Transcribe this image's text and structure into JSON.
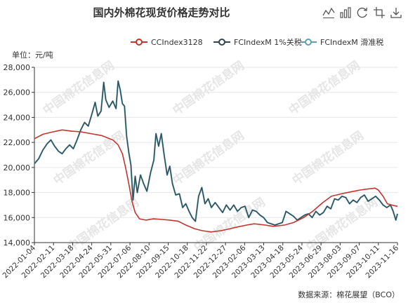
{
  "chart_data": {
    "type": "line",
    "title": "国内外棉花现货价格走势对比",
    "ylabel": "单位：元/吨",
    "source": "数据来源：棉花展望（BCO）",
    "watermark": "中国棉花信息网",
    "ylim": [
      14000,
      28000
    ],
    "yticks": [
      14000,
      16000,
      18000,
      20000,
      22000,
      24000,
      26000,
      28000
    ],
    "xticks": [
      "2022-01-04",
      "2022-02-11",
      "2022-03-18",
      "2022-04-24",
      "2022-05-31",
      "2022-07-06",
      "2022-08-10",
      "2022-09-15",
      "2022-10-18",
      "2022-11-22",
      "2022-12-27",
      "2023-02-06",
      "2023-03-13",
      "2023-04-18",
      "2023-05-24",
      "2023-06-29",
      "2023-08-03",
      "2023-09-07",
      "2023-10-11",
      "2023-11-16"
    ],
    "x_range": [
      "2022-01-04",
      "2023-11-16"
    ],
    "grid": true,
    "legend_position": "top-right",
    "series": [
      {
        "name": "CCIndex3128",
        "color": "#c23531",
        "points": [
          [
            "2022-01-04",
            22300
          ],
          [
            "2022-01-20",
            22650
          ],
          [
            "2022-02-08",
            22850
          ],
          [
            "2022-02-25",
            23000
          ],
          [
            "2022-03-15",
            22900
          ],
          [
            "2022-04-01",
            22850
          ],
          [
            "2022-04-20",
            22700
          ],
          [
            "2022-05-10",
            22550
          ],
          [
            "2022-05-31",
            22200
          ],
          [
            "2022-06-10",
            21800
          ],
          [
            "2022-06-18",
            21100
          ],
          [
            "2022-06-24",
            20000
          ],
          [
            "2022-07-01",
            18500
          ],
          [
            "2022-07-06",
            17300
          ],
          [
            "2022-07-12",
            16400
          ],
          [
            "2022-07-20",
            15900
          ],
          [
            "2022-08-01",
            15800
          ],
          [
            "2022-08-15",
            15900
          ],
          [
            "2022-09-01",
            15850
          ],
          [
            "2022-09-15",
            15800
          ],
          [
            "2022-10-01",
            15700
          ],
          [
            "2022-10-15",
            15400
          ],
          [
            "2022-11-01",
            15100
          ],
          [
            "2022-11-15",
            14950
          ],
          [
            "2022-12-01",
            14850
          ],
          [
            "2022-12-20",
            14950
          ],
          [
            "2023-01-05",
            15100
          ],
          [
            "2023-01-20",
            15250
          ],
          [
            "2023-02-06",
            15400
          ],
          [
            "2023-02-20",
            15500
          ],
          [
            "2023-03-13",
            15400
          ],
          [
            "2023-03-28",
            15300
          ],
          [
            "2023-04-18",
            15400
          ],
          [
            "2023-05-05",
            15600
          ],
          [
            "2023-05-24",
            16000
          ],
          [
            "2023-06-10",
            16500
          ],
          [
            "2023-06-29",
            17200
          ],
          [
            "2023-07-15",
            17700
          ],
          [
            "2023-08-03",
            17900
          ],
          [
            "2023-08-20",
            18050
          ],
          [
            "2023-09-07",
            18200
          ],
          [
            "2023-09-25",
            18300
          ],
          [
            "2023-10-05",
            18350
          ],
          [
            "2023-10-11",
            18200
          ],
          [
            "2023-10-20",
            17700
          ],
          [
            "2023-10-28",
            17100
          ],
          [
            "2023-11-05",
            17000
          ],
          [
            "2023-11-10",
            16950
          ],
          [
            "2023-11-16",
            16900
          ]
        ]
      },
      {
        "name": "FCIndexM 1%关税",
        "color": "#2f4554",
        "points": [
          [
            "2022-01-04",
            20300
          ],
          [
            "2022-01-12",
            20700
          ],
          [
            "2022-01-20",
            21400
          ],
          [
            "2022-01-28",
            21900
          ],
          [
            "2022-02-04",
            22200
          ],
          [
            "2022-02-11",
            21700
          ],
          [
            "2022-02-18",
            21300
          ],
          [
            "2022-02-25",
            21100
          ],
          [
            "2022-03-04",
            21500
          ],
          [
            "2022-03-11",
            21800
          ],
          [
            "2022-03-18",
            21500
          ],
          [
            "2022-03-25",
            22200
          ],
          [
            "2022-04-01",
            23000
          ],
          [
            "2022-04-08",
            23600
          ],
          [
            "2022-04-15",
            23300
          ],
          [
            "2022-04-22",
            24300
          ],
          [
            "2022-04-28",
            25200
          ],
          [
            "2022-05-03",
            24100
          ],
          [
            "2022-05-09",
            24500
          ],
          [
            "2022-05-14",
            26800
          ],
          [
            "2022-05-18",
            25400
          ],
          [
            "2022-05-24",
            24800
          ],
          [
            "2022-05-31",
            25300
          ],
          [
            "2022-06-06",
            24700
          ],
          [
            "2022-06-10",
            26900
          ],
          [
            "2022-06-14",
            26200
          ],
          [
            "2022-06-18",
            25100
          ],
          [
            "2022-06-22",
            24900
          ],
          [
            "2022-06-26",
            22500
          ],
          [
            "2022-06-30",
            21200
          ],
          [
            "2022-07-04",
            20200
          ],
          [
            "2022-07-08",
            17400
          ],
          [
            "2022-07-12",
            19300
          ],
          [
            "2022-07-16",
            18000
          ],
          [
            "2022-07-22",
            19400
          ],
          [
            "2022-07-28",
            18700
          ],
          [
            "2022-08-03",
            18100
          ],
          [
            "2022-08-10",
            19600
          ],
          [
            "2022-08-16",
            20600
          ],
          [
            "2022-08-20",
            22700
          ],
          [
            "2022-08-25",
            21700
          ],
          [
            "2022-08-30",
            22700
          ],
          [
            "2022-09-04",
            21100
          ],
          [
            "2022-09-10",
            19400
          ],
          [
            "2022-09-15",
            20100
          ],
          [
            "2022-09-20",
            18700
          ],
          [
            "2022-09-26",
            17800
          ],
          [
            "2022-10-03",
            17900
          ],
          [
            "2022-10-09",
            16800
          ],
          [
            "2022-10-15",
            17100
          ],
          [
            "2022-10-21",
            16500
          ],
          [
            "2022-10-27",
            16000
          ],
          [
            "2022-11-02",
            15700
          ],
          [
            "2022-11-08",
            17700
          ],
          [
            "2022-11-14",
            18400
          ],
          [
            "2022-11-20",
            17100
          ],
          [
            "2022-11-26",
            17500
          ],
          [
            "2022-12-02",
            16800
          ],
          [
            "2022-12-09",
            17200
          ],
          [
            "2022-12-16",
            16800
          ],
          [
            "2022-12-23",
            16400
          ],
          [
            "2022-12-30",
            17000
          ],
          [
            "2023-01-06",
            16600
          ],
          [
            "2023-01-13",
            17000
          ],
          [
            "2023-01-20",
            16500
          ],
          [
            "2023-01-27",
            16800
          ],
          [
            "2023-02-03",
            16900
          ],
          [
            "2023-02-10",
            16000
          ],
          [
            "2023-02-17",
            16600
          ],
          [
            "2023-02-24",
            16500
          ],
          [
            "2023-03-03",
            16200
          ],
          [
            "2023-03-10",
            16000
          ],
          [
            "2023-03-17",
            15600
          ],
          [
            "2023-03-24",
            15500
          ],
          [
            "2023-03-31",
            15400
          ],
          [
            "2023-04-07",
            15500
          ],
          [
            "2023-04-14",
            15600
          ],
          [
            "2023-04-21",
            16500
          ],
          [
            "2023-04-28",
            16300
          ],
          [
            "2023-05-05",
            16100
          ],
          [
            "2023-05-12",
            15800
          ],
          [
            "2023-05-19",
            16000
          ],
          [
            "2023-05-26",
            16200
          ],
          [
            "2023-06-02",
            16300
          ],
          [
            "2023-06-09",
            16000
          ],
          [
            "2023-06-16",
            16500
          ],
          [
            "2023-06-23",
            16200
          ],
          [
            "2023-06-30",
            16400
          ],
          [
            "2023-07-07",
            16900
          ],
          [
            "2023-07-14",
            16700
          ],
          [
            "2023-07-21",
            17500
          ],
          [
            "2023-07-28",
            17400
          ],
          [
            "2023-08-04",
            17700
          ],
          [
            "2023-08-11",
            17600
          ],
          [
            "2023-08-18",
            17100
          ],
          [
            "2023-08-25",
            17400
          ],
          [
            "2023-09-01",
            17200
          ],
          [
            "2023-09-08",
            17600
          ],
          [
            "2023-09-15",
            17800
          ],
          [
            "2023-09-22",
            17300
          ],
          [
            "2023-09-29",
            17500
          ],
          [
            "2023-10-06",
            17700
          ],
          [
            "2023-10-13",
            17400
          ],
          [
            "2023-10-20",
            17000
          ],
          [
            "2023-10-27",
            16800
          ],
          [
            "2023-11-03",
            17000
          ],
          [
            "2023-11-08",
            16500
          ],
          [
            "2023-11-13",
            15800
          ],
          [
            "2023-11-16",
            16300
          ]
        ]
      },
      {
        "name": "FCIndexM 滑准税",
        "color": "#61a0a8",
        "points": [
          [
            "2022-01-04",
            20300
          ],
          [
            "2022-01-12",
            20700
          ],
          [
            "2022-01-20",
            21400
          ],
          [
            "2022-01-28",
            21900
          ],
          [
            "2022-02-04",
            22200
          ],
          [
            "2022-02-11",
            21700
          ],
          [
            "2022-02-18",
            21300
          ],
          [
            "2022-02-25",
            21100
          ],
          [
            "2022-03-04",
            21500
          ],
          [
            "2022-03-11",
            21800
          ],
          [
            "2022-03-18",
            21500
          ],
          [
            "2022-03-25",
            22200
          ],
          [
            "2022-04-01",
            23000
          ],
          [
            "2022-04-08",
            23600
          ],
          [
            "2022-04-15",
            23300
          ],
          [
            "2022-04-22",
            24300
          ],
          [
            "2022-04-28",
            25200
          ],
          [
            "2022-05-03",
            24100
          ],
          [
            "2022-05-09",
            24500
          ],
          [
            "2022-05-14",
            26800
          ],
          [
            "2022-05-18",
            25400
          ],
          [
            "2022-05-24",
            24800
          ],
          [
            "2022-05-31",
            25300
          ],
          [
            "2022-06-06",
            24700
          ],
          [
            "2022-06-10",
            26900
          ],
          [
            "2022-06-14",
            26200
          ],
          [
            "2022-06-18",
            25100
          ],
          [
            "2022-06-22",
            24900
          ],
          [
            "2022-06-26",
            22500
          ],
          [
            "2022-06-30",
            21200
          ],
          [
            "2022-07-04",
            20200
          ],
          [
            "2022-07-08",
            17400
          ],
          [
            "2022-07-12",
            19300
          ],
          [
            "2022-07-16",
            18000
          ],
          [
            "2022-07-22",
            19400
          ],
          [
            "2022-07-28",
            18700
          ],
          [
            "2022-08-03",
            18100
          ],
          [
            "2022-08-10",
            19600
          ],
          [
            "2022-08-16",
            20600
          ],
          [
            "2022-08-20",
            22700
          ],
          [
            "2022-08-25",
            21700
          ],
          [
            "2022-08-30",
            22700
          ],
          [
            "2022-09-04",
            21100
          ],
          [
            "2022-09-10",
            19400
          ],
          [
            "2022-09-15",
            20100
          ],
          [
            "2022-09-20",
            18700
          ],
          [
            "2022-09-26",
            17800
          ],
          [
            "2022-10-03",
            17900
          ],
          [
            "2022-10-09",
            16800
          ],
          [
            "2022-10-15",
            17100
          ],
          [
            "2022-10-21",
            16500
          ],
          [
            "2022-10-27",
            16000
          ],
          [
            "2022-11-02",
            15700
          ],
          [
            "2022-11-08",
            17700
          ],
          [
            "2022-11-14",
            18400
          ],
          [
            "2022-11-20",
            17100
          ],
          [
            "2022-11-26",
            17500
          ],
          [
            "2022-12-02",
            16800
          ],
          [
            "2022-12-09",
            17200
          ],
          [
            "2022-12-16",
            16800
          ],
          [
            "2022-12-23",
            16400
          ],
          [
            "2022-12-30",
            17000
          ],
          [
            "2023-01-06",
            16600
          ],
          [
            "2023-01-13",
            17000
          ],
          [
            "2023-01-20",
            16500
          ],
          [
            "2023-01-27",
            16800
          ],
          [
            "2023-02-03",
            16900
          ],
          [
            "2023-02-10",
            16000
          ],
          [
            "2023-02-17",
            16600
          ],
          [
            "2023-02-24",
            16500
          ],
          [
            "2023-03-03",
            16200
          ],
          [
            "2023-03-10",
            16000
          ],
          [
            "2023-03-17",
            15600
          ],
          [
            "2023-03-24",
            15500
          ],
          [
            "2023-03-31",
            15400
          ],
          [
            "2023-04-07",
            15500
          ],
          [
            "2023-04-14",
            15600
          ],
          [
            "2023-04-21",
            16500
          ],
          [
            "2023-04-28",
            16300
          ],
          [
            "2023-05-05",
            16100
          ],
          [
            "2023-05-12",
            15800
          ],
          [
            "2023-05-19",
            16000
          ],
          [
            "2023-05-26",
            16200
          ],
          [
            "2023-06-02",
            16300
          ],
          [
            "2023-06-09",
            16000
          ],
          [
            "2023-06-16",
            16500
          ],
          [
            "2023-06-23",
            16200
          ],
          [
            "2023-06-30",
            16400
          ],
          [
            "2023-07-07",
            16900
          ],
          [
            "2023-07-14",
            16700
          ],
          [
            "2023-07-21",
            17500
          ],
          [
            "2023-07-28",
            17400
          ],
          [
            "2023-08-04",
            17700
          ],
          [
            "2023-08-11",
            17600
          ],
          [
            "2023-08-18",
            17100
          ],
          [
            "2023-08-25",
            17400
          ],
          [
            "2023-09-01",
            17200
          ],
          [
            "2023-09-08",
            17600
          ],
          [
            "2023-09-15",
            17800
          ],
          [
            "2023-09-22",
            17300
          ],
          [
            "2023-09-29",
            17500
          ],
          [
            "2023-10-06",
            17700
          ],
          [
            "2023-10-13",
            17400
          ],
          [
            "2023-10-20",
            17000
          ],
          [
            "2023-10-27",
            16800
          ],
          [
            "2023-11-03",
            17000
          ],
          [
            "2023-11-08",
            16500
          ],
          [
            "2023-11-13",
            15800
          ],
          [
            "2023-11-16",
            16300
          ]
        ]
      }
    ]
  },
  "toolbox": [
    {
      "icon": "line-chart-icon"
    },
    {
      "icon": "bar-chart-icon"
    },
    {
      "icon": "restore-icon"
    },
    {
      "icon": "data-zoom-icon"
    },
    {
      "icon": "save-image-icon"
    }
  ],
  "colors": {
    "grid": "#e6e6e6",
    "axis": "#333333",
    "watermark": "#e6e6e6"
  }
}
